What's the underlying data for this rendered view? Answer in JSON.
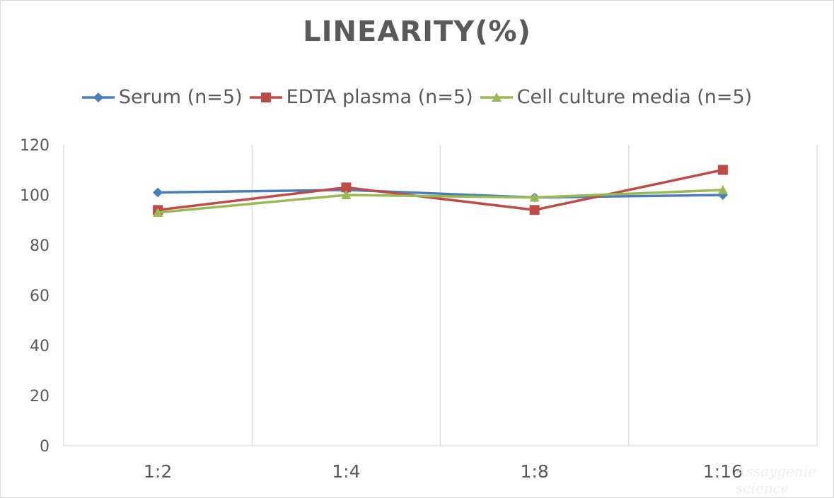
{
  "chart_data": {
    "type": "line",
    "title": "LINEARITY(%)",
    "xlabel": "",
    "ylabel": "",
    "categories": [
      "1:2",
      "1:4",
      "1:8",
      "1:16"
    ],
    "ylim": [
      0,
      120
    ],
    "yticks": [
      0,
      20,
      40,
      60,
      80,
      100,
      120
    ],
    "ytick_labels": [
      "0",
      "20",
      "40",
      "60",
      "80",
      "100",
      "120"
    ],
    "grid": "vertical",
    "legend_position": "top",
    "series": [
      {
        "name": "Serum (n=5)",
        "color": "#4a7ebb",
        "marker": "diamond",
        "values": [
          101,
          102,
          99,
          100
        ]
      },
      {
        "name": "EDTA plasma (n=5)",
        "color": "#be4b48",
        "marker": "square",
        "values": [
          94,
          103,
          94,
          110
        ]
      },
      {
        "name": "Cell culture media (n=5)",
        "color": "#98b954",
        "marker": "triangle",
        "values": [
          93,
          100,
          99,
          102
        ]
      }
    ]
  },
  "watermark": "Assaygenie science"
}
